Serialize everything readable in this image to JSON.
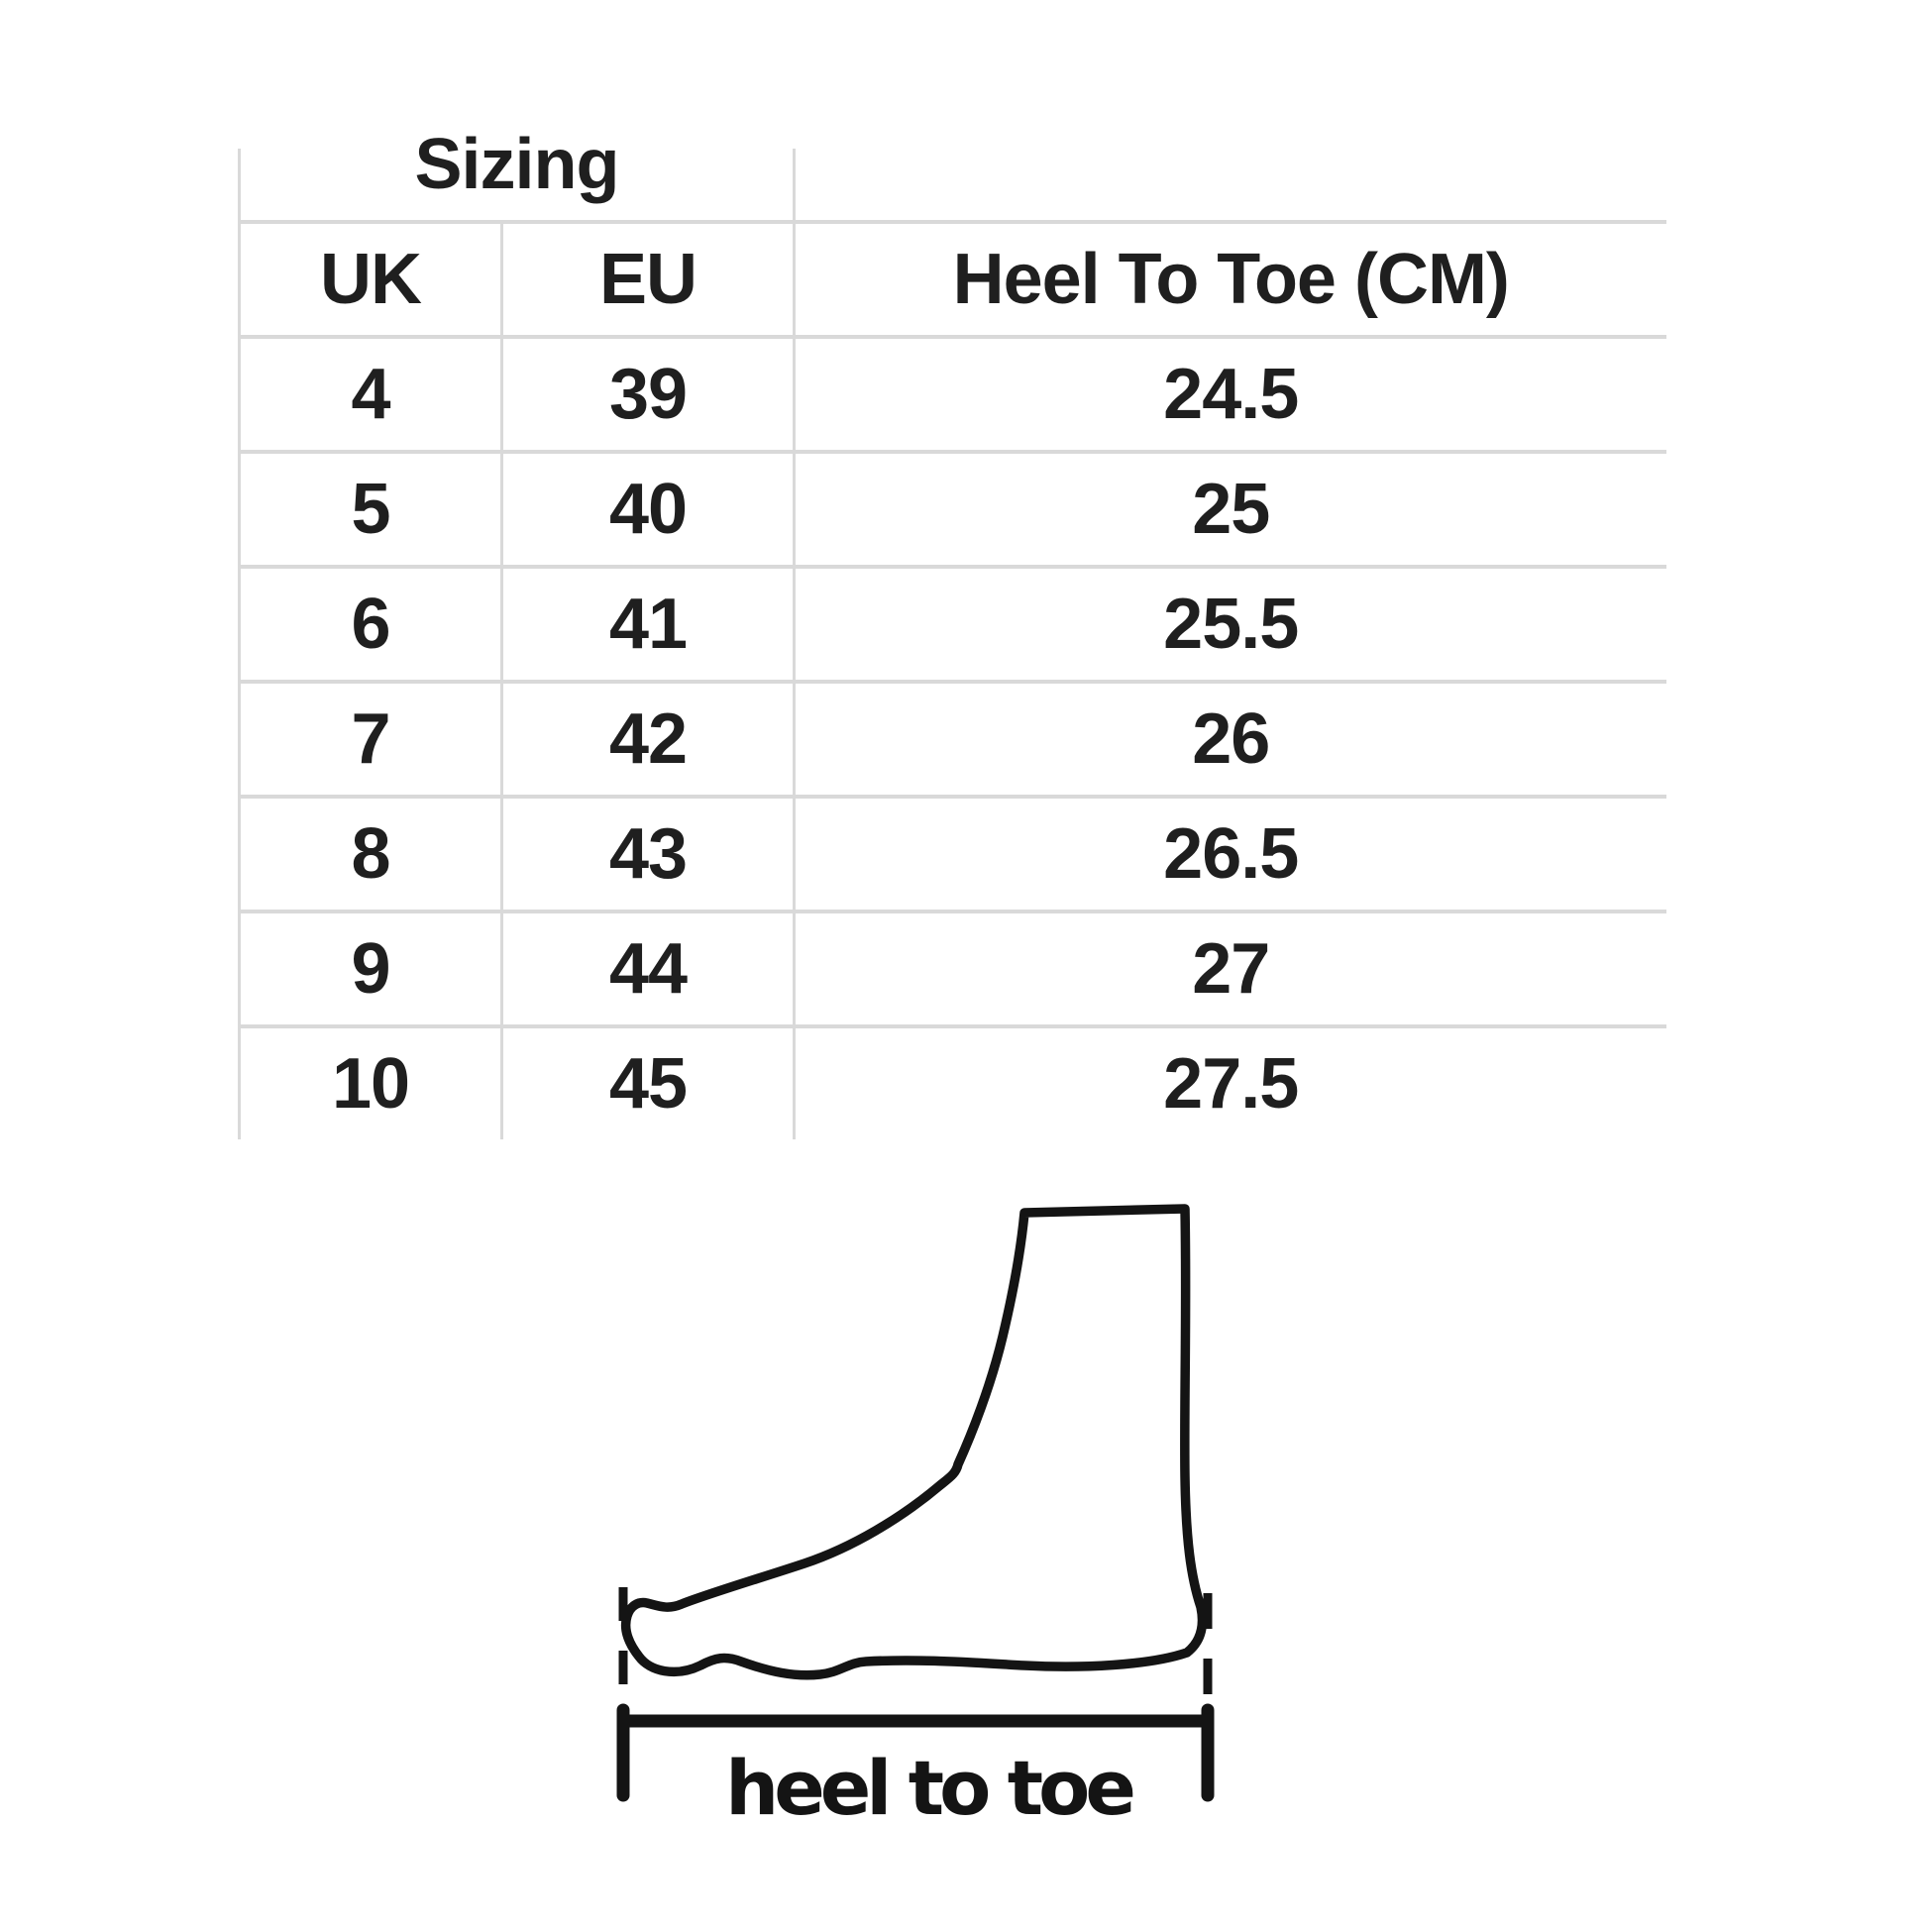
{
  "table": {
    "title": "Sizing",
    "columns": [
      "UK",
      "EU",
      "Heel To Toe (CM)"
    ],
    "rows": [
      [
        "4",
        "39",
        "24.5"
      ],
      [
        "5",
        "40",
        "25"
      ],
      [
        "6",
        "41",
        "25.5"
      ],
      [
        "7",
        "42",
        "26"
      ],
      [
        "8",
        "43",
        "26.5"
      ],
      [
        "9",
        "44",
        "27"
      ],
      [
        "10",
        "45",
        "27.5"
      ]
    ]
  },
  "diagram": {
    "caption": "heel to toe"
  },
  "colors": {
    "grid": "#d9d9d9",
    "text": "#1f1f1f",
    "ink": "#141414",
    "background": "#ffffff"
  }
}
